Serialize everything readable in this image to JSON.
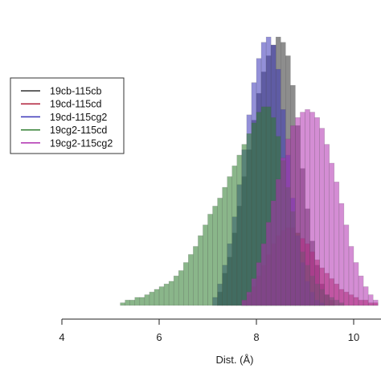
{
  "chart_data": {
    "type": "bar",
    "subtype": "overlaid-histogram",
    "title": "",
    "xlabel": "Dist. (Å)",
    "ylabel": "",
    "xlim": [
      4,
      10.5
    ],
    "ylim": [
      0,
      1
    ],
    "x_ticks": [
      4,
      6,
      8,
      10
    ],
    "grid": false,
    "legend_position": "left",
    "bins": {
      "start": 4.8,
      "width": 0.1,
      "count": 57
    },
    "series": [
      {
        "name": "19cb-115cb",
        "color": "#303030",
        "fill_opacity": 0.55,
        "values": [
          0.0,
          0.0,
          0.0,
          0.0,
          0.0,
          0.0,
          0.0,
          0.0,
          0.0,
          0.0,
          0.0,
          0.0,
          0.0,
          0.0,
          0.0,
          0.0,
          0.0,
          0.0,
          0.0,
          0.0,
          0.0,
          0.0,
          0.0,
          0.0,
          0.05,
          0.12,
          0.18,
          0.27,
          0.37,
          0.48,
          0.58,
          0.69,
          0.79,
          0.87,
          0.93,
          0.97,
          1.0,
          0.98,
          0.93,
          0.82,
          0.67,
          0.51,
          0.36,
          0.24,
          0.15,
          0.08,
          0.04,
          0.02,
          0.0,
          0.0,
          0.0,
          0.0,
          0.0,
          0.0,
          0.0,
          0.0,
          0.0
        ]
      },
      {
        "name": "19cd-115cd",
        "color": "#b0203a",
        "fill_opacity": 0.55,
        "values": [
          0.0,
          0.0,
          0.0,
          0.0,
          0.0,
          0.0,
          0.0,
          0.0,
          0.0,
          0.0,
          0.0,
          0.0,
          0.0,
          0.0,
          0.0,
          0.0,
          0.0,
          0.0,
          0.0,
          0.0,
          0.0,
          0.0,
          0.0,
          0.0,
          0.0,
          0.0,
          0.0,
          0.0,
          0.0,
          0.02,
          0.04,
          0.07,
          0.11,
          0.15,
          0.19,
          0.23,
          0.26,
          0.28,
          0.29,
          0.29,
          0.27,
          0.25,
          0.23,
          0.2,
          0.17,
          0.14,
          0.12,
          0.1,
          0.08,
          0.06,
          0.05,
          0.04,
          0.03,
          0.02,
          0.02,
          0.01,
          0.01
        ]
      },
      {
        "name": "19cd-115cg2",
        "color": "#3a35b8",
        "fill_opacity": 0.55,
        "values": [
          0.0,
          0.0,
          0.0,
          0.0,
          0.0,
          0.0,
          0.0,
          0.0,
          0.0,
          0.0,
          0.0,
          0.0,
          0.0,
          0.0,
          0.0,
          0.0,
          0.0,
          0.0,
          0.0,
          0.0,
          0.0,
          0.0,
          0.0,
          0.03,
          0.08,
          0.15,
          0.23,
          0.33,
          0.45,
          0.58,
          0.71,
          0.83,
          0.92,
          0.98,
          1.0,
          0.97,
          0.88,
          0.73,
          0.56,
          0.4,
          0.26,
          0.16,
          0.09,
          0.05,
          0.02,
          0.01,
          0.0,
          0.0,
          0.0,
          0.0,
          0.0,
          0.0,
          0.0,
          0.0,
          0.0,
          0.0,
          0.0
        ]
      },
      {
        "name": "19cg2-115cd",
        "color": "#2a7a2a",
        "fill_opacity": 0.55,
        "values": [
          0.0,
          0.0,
          0.0,
          0.0,
          0.01,
          0.02,
          0.02,
          0.03,
          0.03,
          0.04,
          0.05,
          0.06,
          0.07,
          0.08,
          0.09,
          0.11,
          0.13,
          0.16,
          0.19,
          0.22,
          0.26,
          0.3,
          0.34,
          0.37,
          0.4,
          0.44,
          0.48,
          0.52,
          0.56,
          0.6,
          0.64,
          0.68,
          0.72,
          0.74,
          0.74,
          0.7,
          0.63,
          0.54,
          0.44,
          0.35,
          0.27,
          0.2,
          0.15,
          0.11,
          0.08,
          0.06,
          0.04,
          0.03,
          0.02,
          0.01,
          0.0,
          0.0,
          0.0,
          0.0,
          0.0,
          0.0,
          0.0
        ]
      },
      {
        "name": "19cg2-115cg2",
        "color": "#b030b0",
        "fill_opacity": 0.55,
        "values": [
          0.0,
          0.0,
          0.0,
          0.0,
          0.0,
          0.0,
          0.0,
          0.0,
          0.0,
          0.0,
          0.0,
          0.0,
          0.0,
          0.0,
          0.0,
          0.0,
          0.0,
          0.0,
          0.0,
          0.0,
          0.0,
          0.0,
          0.0,
          0.0,
          0.0,
          0.0,
          0.0,
          0.0,
          0.0,
          0.02,
          0.05,
          0.1,
          0.16,
          0.23,
          0.31,
          0.39,
          0.47,
          0.55,
          0.62,
          0.67,
          0.7,
          0.72,
          0.73,
          0.72,
          0.7,
          0.66,
          0.6,
          0.53,
          0.46,
          0.38,
          0.3,
          0.22,
          0.16,
          0.11,
          0.07,
          0.04,
          0.02
        ]
      }
    ]
  }
}
